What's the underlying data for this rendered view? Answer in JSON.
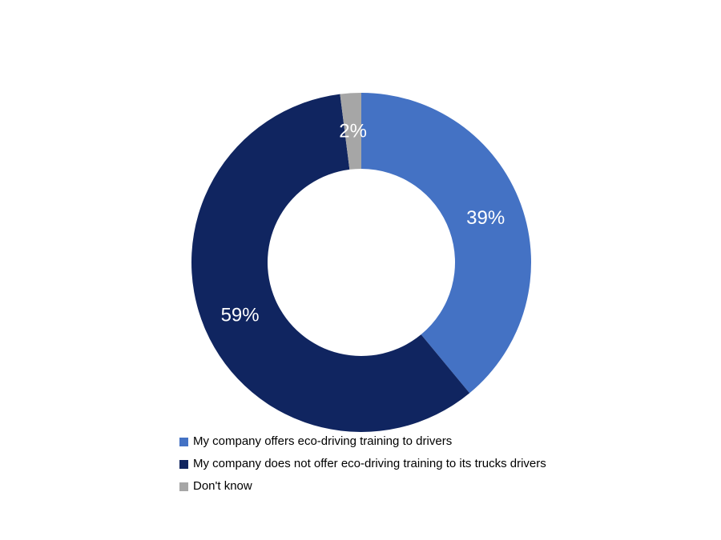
{
  "chart_data": {
    "type": "pie",
    "variant": "donut",
    "title": "",
    "start_angle_deg": 0,
    "direction": "clockwise",
    "legend_position": "bottom-left",
    "background_color": "#FFFFFF",
    "data_label_color": "#FFFFFF",
    "legend_text_color": "#000000",
    "slices": [
      {
        "label": "My company offers eco-driving training to drivers",
        "value": 39,
        "display": "39%",
        "color": "#4472C4"
      },
      {
        "label": "My company does not offer eco-driving training to its trucks drivers",
        "value": 59,
        "display": "59%",
        "color": "#102560"
      },
      {
        "label": "Don't know",
        "value": 2,
        "display": "2%",
        "color": "#A6A6A6"
      }
    ]
  }
}
